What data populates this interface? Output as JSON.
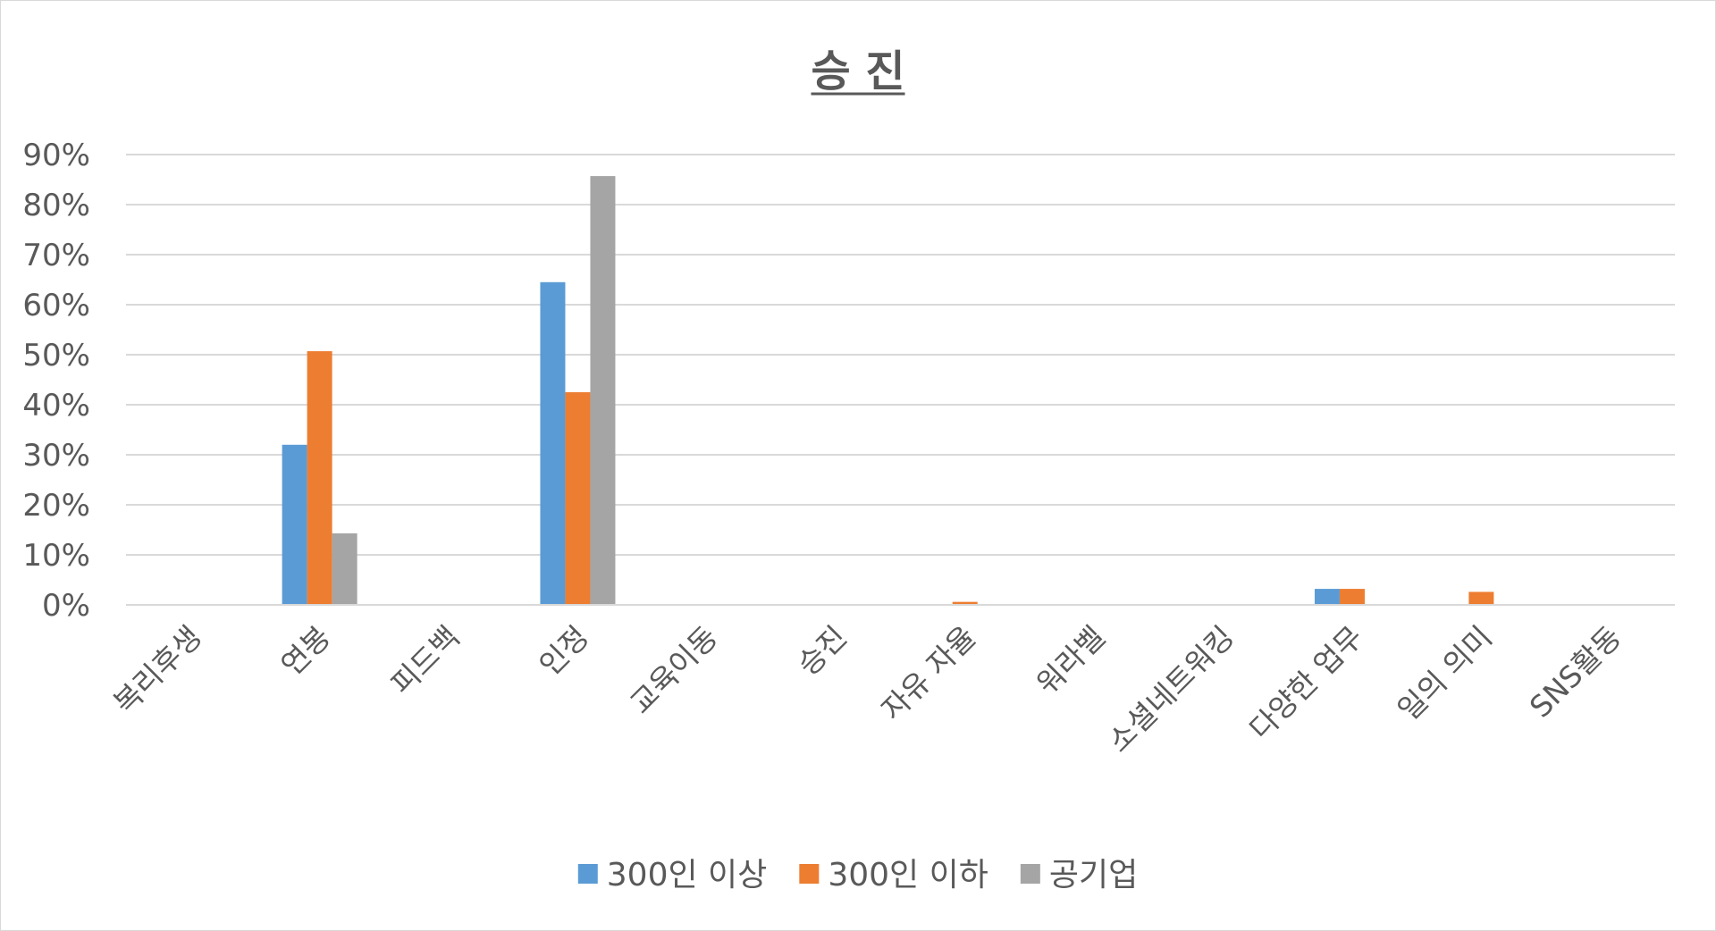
{
  "chart_data": {
    "type": "bar",
    "title": "승 진",
    "xlabel": "",
    "ylabel": "",
    "ylim": [
      0,
      0.9
    ],
    "y_ticks": [
      0,
      0.1,
      0.2,
      0.3,
      0.4,
      0.5,
      0.6,
      0.7,
      0.8,
      0.9
    ],
    "y_tick_labels": [
      "0%",
      "10%",
      "20%",
      "30%",
      "40%",
      "50%",
      "60%",
      "70%",
      "80%",
      "90%"
    ],
    "grid": true,
    "legend_position": "bottom",
    "categories": [
      "복리후생",
      "연봉",
      "피드백",
      "인정",
      "교육이동",
      "승진",
      "자유 자율",
      "워라벨",
      "소셜네트워킹",
      "다양한 업무",
      "일의 의미",
      "SNS활동"
    ],
    "series": [
      {
        "name": "300인 이상",
        "color": "#5b9bd5",
        "values": [
          0,
          0.32,
          0,
          0.645,
          0,
          0,
          0,
          0,
          0,
          0.032,
          0,
          0
        ]
      },
      {
        "name": "300인 이하",
        "color": "#ed7d31",
        "values": [
          0,
          0.507,
          0,
          0.425,
          0,
          0,
          0.006,
          0,
          0,
          0.032,
          0.026,
          0
        ]
      },
      {
        "name": "공기업",
        "color": "#a5a5a5",
        "values": [
          0,
          0.143,
          0,
          0.857,
          0,
          0,
          0,
          0,
          0,
          0,
          0,
          0
        ]
      }
    ]
  }
}
